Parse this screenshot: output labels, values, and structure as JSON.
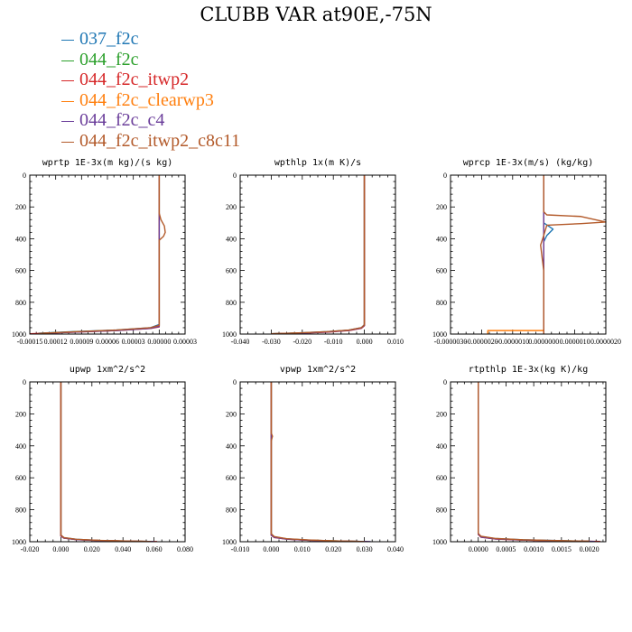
{
  "title": "CLUBB VAR at90E,-75N",
  "legend": [
    {
      "label": "037_f2c",
      "color": "#1f77b4"
    },
    {
      "label": "044_f2c",
      "color": "#2ca02c"
    },
    {
      "label": "044_f2c_itwp2",
      "color": "#d62728"
    },
    {
      "label": "044_f2c_clearwp3",
      "color": "#ff7f0e"
    },
    {
      "label": "044_f2c_c4",
      "color": "#6a3d9a"
    },
    {
      "label": "044_f2c_itwp2_c8c11",
      "color": "#b35a2a"
    }
  ],
  "chart_data": [
    {
      "type": "line",
      "title": "wprtp  1E-3x(m kg)/(s kg)",
      "xlim": [
        -0.00015,
        3e-05
      ],
      "ylim": [
        0,
        1000
      ],
      "x_ticks": [
        "-0.00015",
        "0.00012",
        "0.00009",
        "0.00006",
        "0.00003",
        "0.00000",
        "0.00003"
      ],
      "y_ticks": [
        "0",
        "200",
        "400",
        "600",
        "800",
        "1000"
      ],
      "series": [
        {
          "x": [
            0.0,
            0.0,
            0.0,
            0.0,
            0.0,
            -1e-05,
            -5e-05,
            -0.0001,
            -0.00014
          ],
          "y": [
            0,
            200,
            400,
            600,
            940,
            960,
            975,
            985,
            995
          ],
          "color": "#1f77b4"
        },
        {
          "x": [
            0.0,
            0.0,
            0.0,
            0.0,
            -1e-05,
            -5e-05,
            -0.0001,
            -0.00014
          ],
          "y": [
            0,
            200,
            400,
            950,
            962,
            976,
            986,
            996
          ],
          "color": "#2ca02c"
        },
        {
          "x": [
            0.0,
            0.0,
            0.0,
            0.0,
            -1e-05,
            -5e-05,
            -0.0001,
            -0.00015
          ],
          "y": [
            0,
            200,
            400,
            955,
            965,
            978,
            988,
            998
          ],
          "color": "#d62728"
        },
        {
          "x": [
            0.0,
            0.0,
            0.0,
            0.0,
            -1e-05,
            -5e-05,
            -0.0001,
            -0.00014
          ],
          "y": [
            0,
            200,
            400,
            950,
            963,
            977,
            987,
            997
          ],
          "color": "#ff7f0e"
        },
        {
          "x": [
            0.0,
            0.0,
            0.0,
            0.0,
            -1e-05,
            -5e-05,
            -0.0001,
            -0.00014
          ],
          "y": [
            0,
            200,
            400,
            952,
            964,
            978,
            988,
            997
          ],
          "color": "#6a3d9a"
        },
        {
          "x": [
            0.0,
            0.0,
            2e-06,
            6e-06,
            7e-06,
            5e-06,
            0.0,
            0.0,
            0.0,
            -1e-05,
            -5e-05,
            -0.0001,
            -0.00014
          ],
          "y": [
            0,
            240,
            280,
            320,
            360,
            385,
            410,
            600,
            945,
            960,
            975,
            986,
            996
          ],
          "color": "#b35a2a"
        }
      ]
    },
    {
      "type": "line",
      "title": "wpthlp  1x(m K)/s",
      "xlim": [
        -0.04,
        0.01
      ],
      "ylim": [
        0,
        1000
      ],
      "x_ticks": [
        "-0.040",
        "-0.030",
        "-0.020",
        "-0.010",
        "0.000",
        "0.010"
      ],
      "y_ticks": [
        "0",
        "200",
        "400",
        "600",
        "800",
        "1000"
      ],
      "series": [
        {
          "x": [
            0.0,
            0.0,
            0.0,
            -0.001,
            -0.005,
            -0.012,
            -0.02,
            -0.03
          ],
          "y": [
            0,
            500,
            940,
            960,
            975,
            985,
            992,
            998
          ],
          "color": "#1f77b4"
        },
        {
          "x": [
            0.0,
            0.0,
            0.0,
            -0.001,
            -0.005,
            -0.012,
            -0.02,
            -0.03
          ],
          "y": [
            0,
            500,
            945,
            962,
            976,
            986,
            993,
            998
          ],
          "color": "#2ca02c"
        },
        {
          "x": [
            0.0,
            0.0,
            0.0,
            -0.001,
            -0.005,
            -0.012,
            -0.02,
            -0.03
          ],
          "y": [
            0,
            500,
            948,
            964,
            978,
            988,
            994,
            999
          ],
          "color": "#d62728"
        },
        {
          "x": [
            0.0,
            0.0,
            0.0,
            -0.001,
            -0.005,
            -0.012,
            -0.02,
            -0.03
          ],
          "y": [
            0,
            500,
            944,
            961,
            976,
            986,
            993,
            998
          ],
          "color": "#ff7f0e"
        },
        {
          "x": [
            0.0,
            0.0,
            0.0,
            -0.001,
            -0.005,
            -0.012,
            -0.02,
            -0.03
          ],
          "y": [
            0,
            500,
            946,
            963,
            977,
            987,
            994,
            998
          ],
          "color": "#6a3d9a"
        },
        {
          "x": [
            0.0,
            0.0,
            0.0,
            -0.001,
            -0.005,
            -0.012,
            -0.02,
            -0.03
          ],
          "y": [
            0,
            500,
            942,
            960,
            975,
            985,
            992,
            998
          ],
          "color": "#b35a2a"
        }
      ]
    },
    {
      "type": "line",
      "title": "wprcp  1E-3x(m/s) (kg/kg)",
      "xlim": [
        -3e-06,
        2e-06
      ],
      "ylim": [
        0,
        1000
      ],
      "x_ticks": [
        "-0.0000030",
        "-0.0000020",
        "-0.0000010",
        "0.0000000",
        "0.0000010",
        "0.0000020"
      ],
      "y_ticks": [
        "0",
        "200",
        "400",
        "600",
        "800",
        "1000"
      ],
      "series": [
        {
          "x": [
            0.0,
            0.0,
            3e-07,
            1e-07,
            0.0,
            0.0,
            0.0
          ],
          "y": [
            0,
            300,
            340,
            380,
            420,
            970,
            1000
          ],
          "color": "#1f77b4"
        },
        {
          "x": [
            0.0,
            0.0,
            0.0
          ],
          "y": [
            0,
            970,
            1000
          ],
          "color": "#2ca02c"
        },
        {
          "x": [
            0.0,
            0.0,
            0.0
          ],
          "y": [
            0,
            975,
            1000
          ],
          "color": "#d62728"
        },
        {
          "x": [
            0.0,
            0.0,
            -1.8e-06,
            -1.8e-06
          ],
          "y": [
            0,
            978,
            978,
            1000
          ],
          "color": "#ff7f0e"
        },
        {
          "x": [
            0.0,
            0.0,
            0.0
          ],
          "y": [
            0,
            978,
            1000
          ],
          "color": "#6a3d9a"
        },
        {
          "x": [
            0.0,
            0.0,
            1e-07,
            1.2e-06,
            2e-06,
            1.2e-06,
            1e-07,
            0.0,
            -1e-07,
            0.0,
            0.0
          ],
          "y": [
            0,
            230,
            250,
            260,
            295,
            305,
            315,
            380,
            440,
            600,
            1000
          ],
          "color": "#b35a2a"
        }
      ]
    },
    {
      "type": "line",
      "title": "upwp  1xm^2/s^2",
      "xlim": [
        -0.02,
        0.08
      ],
      "ylim": [
        0,
        1000
      ],
      "x_ticks": [
        "-0.020",
        "0.000",
        "0.020",
        "0.040",
        "0.060",
        "0.080"
      ],
      "y_ticks": [
        "0",
        "200",
        "400",
        "600",
        "800",
        "1000"
      ],
      "series": [
        {
          "x": [
            0.0,
            0.0,
            0.0,
            0.002,
            0.01,
            0.025,
            0.045,
            0.06
          ],
          "y": [
            0,
            500,
            960,
            975,
            985,
            992,
            996,
            999
          ],
          "color": "#1f77b4"
        },
        {
          "x": [
            0.0,
            0.0,
            0.0,
            0.002,
            0.01,
            0.025,
            0.045,
            0.06
          ],
          "y": [
            0,
            500,
            962,
            977,
            986,
            993,
            997,
            999
          ],
          "color": "#2ca02c"
        },
        {
          "x": [
            0.0,
            0.0,
            0.0,
            0.002,
            0.01,
            0.025,
            0.045,
            0.062
          ],
          "y": [
            0,
            500,
            965,
            978,
            987,
            993,
            997,
            999
          ],
          "color": "#d62728"
        },
        {
          "x": [
            0.0,
            0.0,
            0.0,
            0.002,
            0.01,
            0.025,
            0.045,
            0.06
          ],
          "y": [
            0,
            500,
            961,
            976,
            986,
            992,
            996,
            999
          ],
          "color": "#ff7f0e"
        },
        {
          "x": [
            0.0,
            0.0,
            0.0,
            0.002,
            0.01,
            0.025,
            0.045,
            0.06
          ],
          "y": [
            0,
            500,
            963,
            977,
            987,
            993,
            997,
            999
          ],
          "color": "#6a3d9a"
        },
        {
          "x": [
            0.0,
            0.0,
            0.0,
            0.002,
            0.01,
            0.025,
            0.045,
            0.058
          ],
          "y": [
            0,
            500,
            958,
            974,
            985,
            992,
            996,
            999
          ],
          "color": "#b35a2a"
        }
      ]
    },
    {
      "type": "line",
      "title": "vpwp  1xm^2/s^2",
      "xlim": [
        -0.01,
        0.04
      ],
      "ylim": [
        0,
        1000
      ],
      "x_ticks": [
        "-0.010",
        "0.000",
        "0.010",
        "0.020",
        "0.030",
        "0.040"
      ],
      "y_ticks": [
        "0",
        "200",
        "400",
        "600",
        "800",
        "1000"
      ],
      "series": [
        {
          "x": [
            0.0,
            0.0,
            0.0,
            0.001,
            0.005,
            0.012,
            0.02,
            0.03
          ],
          "y": [
            0,
            500,
            955,
            970,
            982,
            990,
            995,
            999
          ],
          "color": "#1f77b4"
        },
        {
          "x": [
            0.0,
            0.0,
            0.0,
            0.001,
            0.005,
            0.012,
            0.02,
            0.03
          ],
          "y": [
            0,
            500,
            958,
            972,
            983,
            991,
            995,
            999
          ],
          "color": "#2ca02c"
        },
        {
          "x": [
            0.0,
            0.0,
            0.0,
            0.001,
            0.005,
            0.012,
            0.02,
            0.031
          ],
          "y": [
            0,
            500,
            960,
            974,
            984,
            991,
            996,
            999
          ],
          "color": "#d62728"
        },
        {
          "x": [
            0.0,
            0.0,
            0.0,
            0.001,
            0.005,
            0.012,
            0.02,
            0.03
          ],
          "y": [
            0,
            500,
            957,
            971,
            983,
            990,
            995,
            999
          ],
          "color": "#ff7f0e"
        },
        {
          "x": [
            0.0,
            0.0,
            0.0,
            0.001,
            0.005,
            0.012,
            0.02,
            0.032
          ],
          "y": [
            0,
            500,
            959,
            973,
            984,
            991,
            996,
            999
          ],
          "color": "#6a3d9a"
        },
        {
          "x": [
            0.0,
            0.0,
            0.0004,
            0.0,
            0.0,
            0.001,
            0.005,
            0.012,
            0.02,
            0.03
          ],
          "y": [
            0,
            320,
            340,
            370,
            950,
            968,
            981,
            989,
            995,
            999
          ],
          "color": "#b35a2a"
        }
      ]
    },
    {
      "type": "line",
      "title": "rtpthlp  1E-3x(kg K)/kg",
      "xlim": [
        -0.0005,
        0.0023
      ],
      "ylim": [
        0,
        1000
      ],
      "x_ticks": [
        "0.0000",
        "0.0005",
        "0.0010",
        "0.0015",
        "0.0020"
      ],
      "y_ticks": [
        "0",
        "200",
        "400",
        "600",
        "800",
        "1000"
      ],
      "series": [
        {
          "x": [
            0.0,
            0.0,
            0.0,
            5e-05,
            0.0003,
            0.0008,
            0.0014,
            0.002
          ],
          "y": [
            0,
            500,
            950,
            968,
            980,
            988,
            993,
            997
          ],
          "color": "#1f77b4"
        },
        {
          "x": [
            0.0,
            0.0,
            0.0,
            5e-05,
            0.0003,
            0.0008,
            0.0014,
            0.002
          ],
          "y": [
            0,
            500,
            952,
            970,
            981,
            989,
            994,
            997
          ],
          "color": "#2ca02c"
        },
        {
          "x": [
            0.0,
            0.0,
            0.0,
            5e-05,
            0.0003,
            0.0008,
            0.0014,
            0.0022
          ],
          "y": [
            0,
            500,
            955,
            972,
            983,
            990,
            995,
            998
          ],
          "color": "#d62728"
        },
        {
          "x": [
            0.0,
            0.0,
            0.0,
            5e-05,
            0.0003,
            0.0008,
            0.0014,
            0.002
          ],
          "y": [
            0,
            500,
            951,
            969,
            981,
            989,
            994,
            997
          ],
          "color": "#ff7f0e"
        },
        {
          "x": [
            0.0,
            0.0,
            0.0,
            5e-05,
            0.0003,
            0.0008,
            0.0014,
            0.0021
          ],
          "y": [
            0,
            500,
            953,
            971,
            982,
            990,
            994,
            998
          ],
          "color": "#6a3d9a"
        },
        {
          "x": [
            0.0,
            0.0,
            0.0,
            5e-05,
            0.0003,
            0.0008,
            0.0014,
            0.002
          ],
          "y": [
            0,
            500,
            948,
            966,
            979,
            988,
            993,
            997
          ],
          "color": "#b35a2a"
        }
      ]
    }
  ]
}
